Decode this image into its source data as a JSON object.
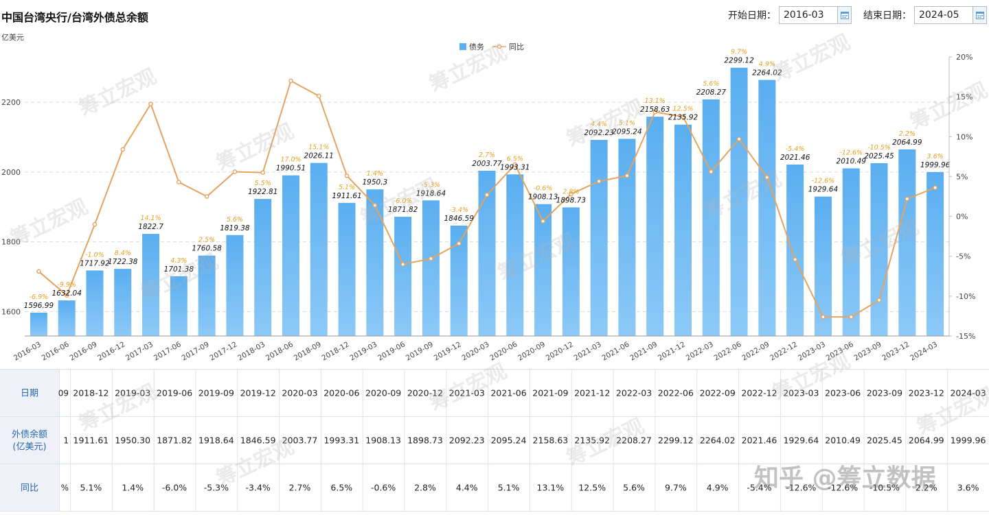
{
  "header": {
    "title": "中国台湾央行/台湾外债总余额",
    "unit": "亿美元",
    "start_label": "开始日期：",
    "start_value": "2016-03",
    "end_label": "结束日期：",
    "end_value": "2024-05"
  },
  "legend": {
    "bar_label": "债务",
    "line_label": "同比"
  },
  "colors": {
    "bar": "#5ab1ef",
    "line": "#e5a35f",
    "line_label": "#e5a020",
    "grid": "#d9d9d9"
  },
  "chart_data": {
    "type": "bar",
    "categories": [
      "2016-03",
      "2016-06",
      "2016-09",
      "2016-12",
      "2017-03",
      "2017-06",
      "2017-09",
      "2017-12",
      "2018-03",
      "2018-06",
      "2018-09",
      "2018-12",
      "2019-03",
      "2019-06",
      "2019-09",
      "2019-12",
      "2020-03",
      "2020-06",
      "2020-09",
      "2020-12",
      "2021-03",
      "2021-06",
      "2021-09",
      "2021-12",
      "2022-03",
      "2022-06",
      "2022-09",
      "2022-12",
      "2023-03",
      "2023-06",
      "2023-09",
      "2023-12",
      "2024-03"
    ],
    "series": [
      {
        "name": "债务",
        "type": "bar",
        "axis": "left",
        "values": [
          1596.99,
          1632.04,
          1717.92,
          1722.38,
          1822.7,
          1701.38,
          1760.58,
          1819.38,
          1922.81,
          1990.51,
          2026.11,
          1911.61,
          1950.3,
          1871.82,
          1918.64,
          1846.59,
          2003.77,
          1993.31,
          1908.13,
          1898.73,
          2092.23,
          2095.24,
          2158.63,
          2135.92,
          2208.27,
          2299.12,
          2264.02,
          2021.46,
          1929.64,
          2010.49,
          2025.45,
          2064.99,
          1999.96
        ],
        "labels": [
          "1596.99",
          "1632.04",
          "1717.92",
          "1722.38",
          "1822.7",
          "1701.38",
          "1760.58",
          "1819.38",
          "1922.81",
          "1990.51",
          "2026.11",
          "1911.61",
          "1950.3",
          "1871.82",
          "1918.64",
          "1846.59",
          "2003.77",
          "1993.31",
          "1908.13",
          "1898.73",
          "2092.23",
          "2095.24",
          "2158.63",
          "2135.92",
          "2208.27",
          "2299.12",
          "2264.02",
          "2021.46",
          "1929.64",
          "2010.49",
          "2025.45",
          "2064.99",
          "1999.96"
        ]
      },
      {
        "name": "同比",
        "type": "line",
        "axis": "right",
        "values": [
          -6.9,
          -9.9,
          -1.0,
          8.4,
          14.1,
          4.3,
          2.5,
          5.6,
          5.5,
          17.0,
          15.1,
          5.1,
          1.4,
          -6.0,
          -5.3,
          -3.4,
          2.7,
          6.5,
          -0.6,
          2.8,
          4.4,
          5.1,
          13.1,
          12.5,
          5.6,
          9.7,
          4.9,
          -5.4,
          -12.6,
          -12.6,
          -10.5,
          2.2,
          3.6
        ],
        "labels": [
          "-6.9%",
          "-9.9%",
          "-1.0%",
          "8.4%",
          "14.1%",
          "4.3%",
          "2.5%",
          "5.6%",
          "5.5%",
          "17.0%",
          "15.1%",
          "5.1%",
          "1.4%",
          "-6.0%",
          "-5.3%",
          "-3.4%",
          "2.7%",
          "6.5%",
          "-0.6%",
          "2.8%",
          "4.4%",
          "5.1%",
          "13.1%",
          "12.5%",
          "5.6%",
          "9.7%",
          "4.9%",
          "-5.4%",
          "-12.6%",
          "-12.6%",
          "-10.5%",
          "2.2%",
          "3.6%"
        ]
      }
    ],
    "y_left": {
      "ticks": [
        "1600",
        "1800",
        "2000",
        "2200"
      ],
      "ylim": [
        1530,
        2330
      ]
    },
    "y_right": {
      "ticks": [
        "20%",
        "15%",
        "10%",
        "5%",
        "0%",
        "-5%",
        "-10%",
        "-15%"
      ],
      "ylim": [
        -15,
        20
      ]
    },
    "grid": true,
    "legend_position": "top-center"
  },
  "table": {
    "row_headers": [
      "日期",
      "外债余额\n(亿美元)",
      "同比"
    ],
    "dates": [
      "…09",
      "2018-12",
      "2019-03",
      "2019-06",
      "2019-09",
      "2019-12",
      "2020-03",
      "2020-06",
      "2020-09",
      "2020-12",
      "2021-03",
      "2021-06",
      "2021-09",
      "2021-12",
      "2022-03",
      "2022-06",
      "2022-09",
      "2022-12",
      "2023-03",
      "2023-06",
      "2023-09",
      "2023-12",
      "2024-03"
    ],
    "values": [
      "1",
      "1911.61",
      "1950.30",
      "1871.82",
      "1918.64",
      "1846.59",
      "2003.77",
      "1993.31",
      "1908.13",
      "1898.73",
      "2092.23",
      "2095.24",
      "2158.63",
      "2135.92",
      "2208.27",
      "2299.12",
      "2264.02",
      "2021.46",
      "1929.64",
      "2010.49",
      "2025.45",
      "2064.99",
      "1999.96"
    ],
    "yoy": [
      "%",
      "5.1%",
      "1.4%",
      "-6.0%",
      "-5.3%",
      "-3.4%",
      "2.7%",
      "6.5%",
      "-0.6%",
      "2.8%",
      "4.4%",
      "5.1%",
      "13.1%",
      "12.5%",
      "5.6%",
      "9.7%",
      "4.9%",
      "-5.4%",
      "-12.6%",
      "-12.6%",
      "-10.5%",
      "2.2%",
      "3.6%"
    ]
  },
  "watermark": {
    "text": "筹立宏观",
    "credit": "知乎 @筹立数据"
  }
}
